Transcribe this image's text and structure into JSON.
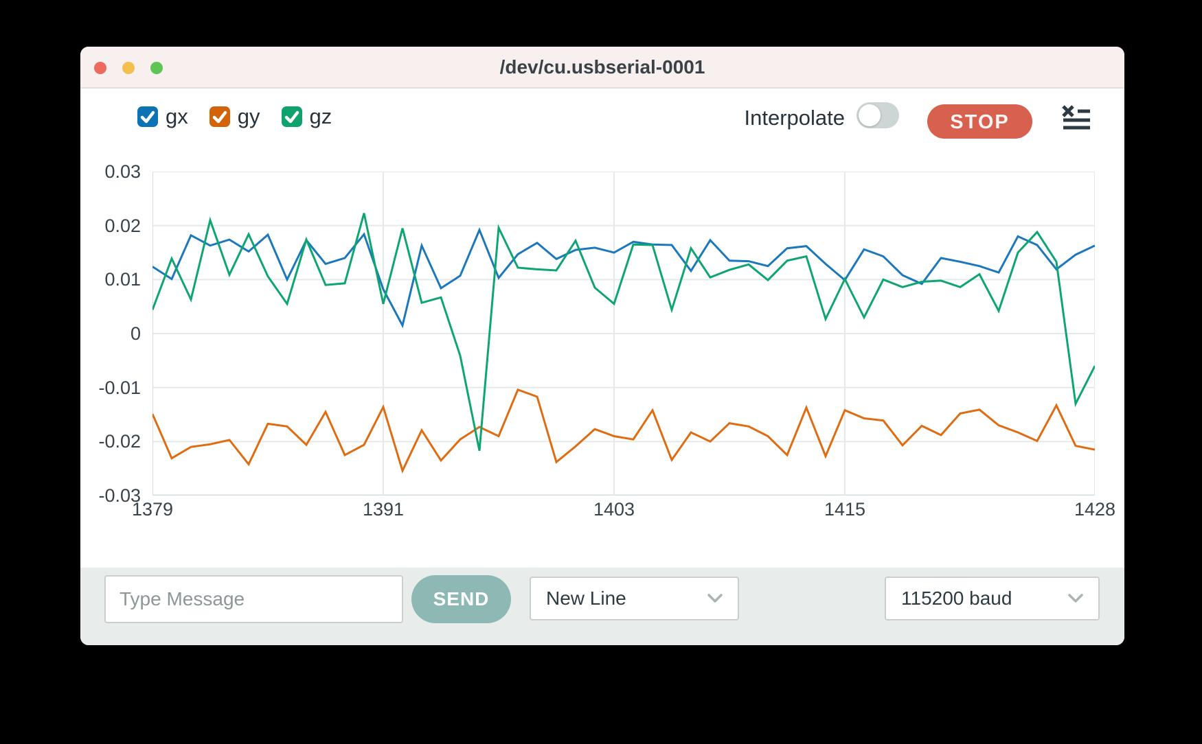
{
  "window": {
    "title": "/dev/cu.usbserial-0001"
  },
  "header": {
    "legend": [
      {
        "label": "gx",
        "color": "#0e73b4",
        "checked": true
      },
      {
        "label": "gy",
        "color": "#d26309",
        "checked": true
      },
      {
        "label": "gz",
        "color": "#0ea26c",
        "checked": true
      }
    ],
    "interpolate_label": "Interpolate",
    "interpolate_on": false,
    "stop_label": "STOP",
    "stop_color": "#d8604e",
    "clear_icon": "clear-list-icon"
  },
  "chart_data": {
    "type": "line",
    "title": "",
    "xlabel": "",
    "ylabel": "",
    "ylim": [
      -0.03,
      0.03
    ],
    "grid": true,
    "legend_position": "top-left-checkboxes",
    "yticks": [
      0.03,
      0.02,
      0.01,
      0,
      -0.01,
      -0.02,
      -0.03
    ],
    "ytick_labels": [
      "0.03",
      "0.02",
      "0.01",
      "0",
      "-0.01",
      "-0.02",
      "-0.03"
    ],
    "xticks": [
      1379,
      1391,
      1403,
      1415,
      1428
    ],
    "x": [
      1379,
      1380,
      1381,
      1382,
      1383,
      1384,
      1385,
      1386,
      1387,
      1388,
      1389,
      1390,
      1391,
      1392,
      1393,
      1394,
      1395,
      1396,
      1397,
      1398,
      1399,
      1400,
      1401,
      1402,
      1403,
      1404,
      1405,
      1406,
      1407,
      1408,
      1409,
      1410,
      1411,
      1412,
      1413,
      1414,
      1415,
      1416,
      1417,
      1418,
      1419,
      1420,
      1421,
      1422,
      1423,
      1424,
      1425,
      1426,
      1427,
      1428
    ],
    "series": [
      {
        "name": "gx",
        "color": "#1b78bd",
        "values": [
          0.0124,
          0.0101,
          0.0182,
          0.0163,
          0.0174,
          0.0152,
          0.0183,
          0.01,
          0.0173,
          0.0129,
          0.014,
          0.0184,
          0.0082,
          0.0015,
          0.0163,
          0.0084,
          0.0107,
          0.0192,
          0.0103,
          0.0147,
          0.0168,
          0.0138,
          0.0155,
          0.0159,
          0.015,
          0.017,
          0.0165,
          0.0164,
          0.0116,
          0.0173,
          0.0135,
          0.0134,
          0.0125,
          0.0158,
          0.0162,
          0.0129,
          0.0099,
          0.0156,
          0.0143,
          0.0108,
          0.0092,
          0.014,
          0.0133,
          0.0125,
          0.0113,
          0.018,
          0.0164,
          0.0119,
          0.0146,
          0.0163
        ]
      },
      {
        "name": "gy",
        "color": "#e06c12",
        "values": [
          -0.0149,
          -0.0231,
          -0.021,
          -0.0205,
          -0.0197,
          -0.0242,
          -0.0167,
          -0.0172,
          -0.0206,
          -0.0145,
          -0.0225,
          -0.0206,
          -0.0136,
          -0.0254,
          -0.0179,
          -0.0235,
          -0.0196,
          -0.0173,
          -0.019,
          -0.0104,
          -0.0117,
          -0.0238,
          -0.0209,
          -0.0177,
          -0.019,
          -0.0196,
          -0.0142,
          -0.0234,
          -0.0183,
          -0.02,
          -0.0166,
          -0.0172,
          -0.019,
          -0.0225,
          -0.0137,
          -0.0227,
          -0.0142,
          -0.0157,
          -0.0161,
          -0.0207,
          -0.0171,
          -0.0188,
          -0.0148,
          -0.0141,
          -0.017,
          -0.0183,
          -0.0199,
          -0.0133,
          -0.0208,
          -0.0215
        ]
      },
      {
        "name": "gz",
        "color": "#0fa573",
        "values": [
          0.0044,
          0.0139,
          0.0063,
          0.021,
          0.0109,
          0.0184,
          0.0106,
          0.0055,
          0.0174,
          0.009,
          0.0093,
          0.0223,
          0.0055,
          0.0195,
          0.0057,
          0.0067,
          -0.0041,
          -0.0217,
          0.0196,
          0.0122,
          0.0119,
          0.0117,
          0.0172,
          0.0085,
          0.0055,
          0.0165,
          0.0164,
          0.0044,
          0.0158,
          0.0104,
          0.0118,
          0.0128,
          0.0099,
          0.0135,
          0.0143,
          0.0027,
          0.0101,
          0.003,
          0.01,
          0.0086,
          0.0096,
          0.0098,
          0.0086,
          0.011,
          0.0042,
          0.015,
          0.0188,
          0.0133,
          -0.013,
          -0.006
        ]
      }
    ]
  },
  "footer": {
    "message_placeholder": "Type Message",
    "send_label": "SEND",
    "send_color": "#8db8b4",
    "line_ending": "New Line",
    "baud": "115200 baud"
  }
}
